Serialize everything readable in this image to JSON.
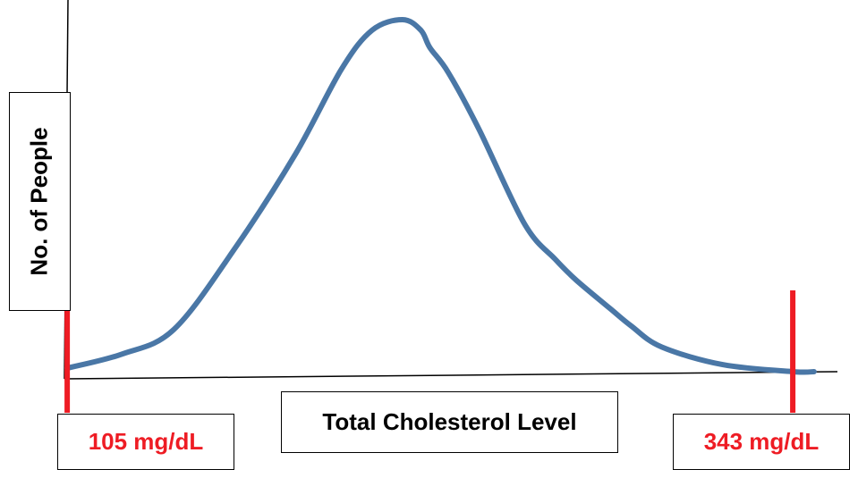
{
  "chart_data": {
    "type": "line",
    "title": "",
    "xlabel": "Total Cholesterol Level",
    "ylabel": "No. of People",
    "grid": false,
    "legend": "none",
    "series": [
      {
        "color": "#4a77a6",
        "x": [
          105,
          123,
          140,
          160,
          180,
          195,
          205,
          215,
          221,
          224,
          230,
          240,
          255,
          265,
          272,
          283,
          290,
          300,
          320,
          343,
          350
        ],
        "y": [
          0.01,
          0.05,
          0.12,
          0.35,
          0.62,
          0.86,
          0.97,
          1.0,
          0.97,
          0.92,
          0.85,
          0.69,
          0.42,
          0.32,
          0.26,
          0.18,
          0.13,
          0.07,
          0.02,
          0.0,
          0.0
        ]
      }
    ],
    "markers": [
      {
        "value": 105,
        "label": "105 mg/dL",
        "color": "#ee1c24"
      },
      {
        "value": 343,
        "label": "343 mg/dL",
        "color": "#ee1c24"
      }
    ]
  }
}
